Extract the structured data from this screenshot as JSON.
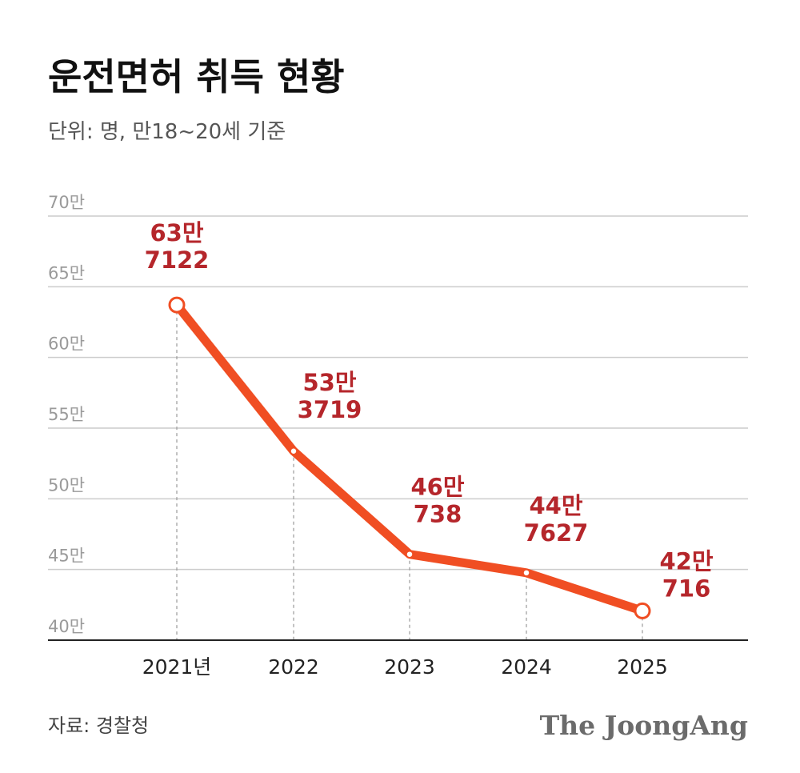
{
  "title": "운전면허 취득 현황",
  "subtitle": "단위: 명, 만18~20세 기준",
  "source": "자료: 경찰청",
  "brand": "The JoongAng",
  "colors": {
    "line": "#f04e23",
    "label": "#b5262b",
    "grid": "#cccccc",
    "axis": "#222222",
    "tick_text": "#9a9a9a"
  },
  "chart_data": {
    "type": "line",
    "title": "운전면허 취득 현황",
    "subtitle": "단위: 명, 만18~20세 기준",
    "categories": [
      "2021년",
      "2022",
      "2023",
      "2024",
      "2025"
    ],
    "values": [
      637122,
      533719,
      460738,
      447627,
      420716
    ],
    "data_labels": [
      [
        "63만",
        "7122"
      ],
      [
        "53만",
        "3719"
      ],
      [
        "46만",
        "738"
      ],
      [
        "44만",
        "7627"
      ],
      [
        "42만",
        "716"
      ]
    ],
    "ylim": [
      400000,
      700000
    ],
    "yticks": [
      400000,
      450000,
      500000,
      550000,
      600000,
      650000,
      700000
    ],
    "ytick_labels": [
      "40만",
      "45만",
      "50만",
      "55만",
      "60만",
      "65만",
      "70만"
    ],
    "grid": true,
    "legend": "none",
    "source": "자료: 경찰청"
  }
}
